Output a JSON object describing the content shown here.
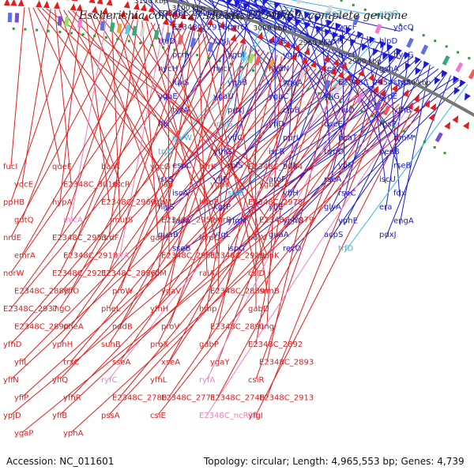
{
  "title": "Escherichia coli O127:H6 str. E2348/69, complete genome",
  "footer": {
    "accession": "Accession: NC_011601",
    "topology": "Topology: circular; Length: 4,965,553 bp; Genes: 4,739"
  },
  "colors": {
    "forward": "#1a1ad6",
    "reverse": "#e21d1d",
    "rna": "#38b6e0",
    "ncrna": "#f080c0",
    "axis": "#777777"
  },
  "kbp_ticks": [
    "3200 kbp",
    "3150 kbp",
    "3100 kbp",
    "3050 kbp",
    "3000 kbp",
    "2950 kbp",
    "2900 kbp",
    "2850 kbp"
  ],
  "forward_labels": [
    {
      "text": "E2348C_2894",
      "kind": "cds"
    },
    {
      "text": "E2348C_2884",
      "kind": "cds"
    },
    {
      "text": "rpoE",
      "kind": "cds"
    },
    {
      "text": "argZ",
      "kind": "rna"
    },
    {
      "text": "argQ",
      "kind": "rna"
    },
    {
      "text": "E2348C_2916",
      "kind": "cds"
    },
    {
      "text": "pvrG",
      "kind": "cds"
    },
    {
      "text": "eno",
      "kind": "cds"
    },
    {
      "text": "ygcF",
      "kind": "cds"
    },
    {
      "text": "ygcQ",
      "kind": "cds"
    },
    {
      "text": "truD",
      "kind": "cds"
    },
    {
      "text": "cysJ",
      "kind": "cds"
    },
    {
      "text": "surE",
      "kind": "cds"
    },
    {
      "text": "cysH",
      "kind": "cds"
    },
    {
      "text": "hlpD",
      "kind": "cds"
    },
    {
      "text": "pcm",
      "kind": "cds"
    },
    {
      "text": "ygbI",
      "kind": "cds"
    },
    {
      "text": "ygbA",
      "kind": "cds"
    },
    {
      "text": "hycF",
      "kind": "cds"
    },
    {
      "text": "hycG",
      "kind": "cds"
    },
    {
      "text": "hycH",
      "kind": "cds"
    },
    {
      "text": "hycI",
      "kind": "cds"
    },
    {
      "text": "hydN",
      "kind": "cds"
    },
    {
      "text": "recX",
      "kind": "cds"
    },
    {
      "text": "gshA",
      "kind": "cds"
    },
    {
      "text": "luxS",
      "kind": "cds"
    },
    {
      "text": "yqaB",
      "kind": "cds"
    },
    {
      "text": "yqaA",
      "kind": "cds"
    },
    {
      "text": "E2348C_2954",
      "kind": "cds"
    },
    {
      "text": "stpA",
      "kind": "cds"
    },
    {
      "text": "yqaE",
      "kind": "cds"
    },
    {
      "text": "ygaU",
      "kind": "cds"
    },
    {
      "text": "ygaC",
      "kind": "cds"
    },
    {
      "text": "yfjG",
      "kind": "cds"
    },
    {
      "text": "grpE",
      "kind": "cds"
    },
    {
      "text": "tyrA",
      "kind": "cds"
    },
    {
      "text": "pdxJ",
      "kind": "cds"
    },
    {
      "text": "clpB",
      "kind": "cds"
    },
    {
      "text": "rluD",
      "kind": "cds"
    },
    {
      "text": "yfhB",
      "kind": "cds"
    },
    {
      "text": "ffh",
      "kind": "cds"
    },
    {
      "text": "trrsG",
      "kind": "rna"
    },
    {
      "text": "yfiD",
      "kind": "cds"
    },
    {
      "text": "qseE",
      "kind": "cds"
    },
    {
      "text": "rpsP",
      "kind": "cds"
    },
    {
      "text": "glyW",
      "kind": "rna"
    },
    {
      "text": "yfiC",
      "kind": "cds"
    },
    {
      "text": "purL",
      "kind": "cds"
    },
    {
      "text": "hcaT",
      "kind": "cds"
    },
    {
      "text": "rimM",
      "kind": "cds"
    },
    {
      "text": "trrG",
      "kind": "rna"
    },
    {
      "text": "yfhG",
      "kind": "cds"
    },
    {
      "text": "iscR",
      "kind": "cds"
    },
    {
      "text": "trmD",
      "kind": "cds"
    },
    {
      "text": "pepB",
      "kind": "cds"
    },
    {
      "text": "espC",
      "kind": "cds"
    },
    {
      "text": "rplS",
      "kind": "cds"
    },
    {
      "text": "ndk",
      "kind": "cds"
    },
    {
      "text": "yfiF",
      "kind": "cds"
    },
    {
      "text": "rseB",
      "kind": "cds"
    },
    {
      "text": "iscS",
      "kind": "cds"
    },
    {
      "text": "yfjF",
      "kind": "cds"
    },
    {
      "text": "aroF",
      "kind": "cds"
    },
    {
      "text": "rseA",
      "kind": "cds"
    },
    {
      "text": "iscU",
      "kind": "cds"
    },
    {
      "text": "iscA",
      "kind": "cds"
    },
    {
      "text": "sroE",
      "kind": "rna"
    },
    {
      "text": "yfiH",
      "kind": "cds"
    },
    {
      "text": "rseC",
      "kind": "cds"
    },
    {
      "text": "fdx",
      "kind": "cds"
    },
    {
      "text": "hisS",
      "kind": "cds"
    },
    {
      "text": "kgtP",
      "kind": "cds"
    },
    {
      "text": "yfiE",
      "kind": "cds"
    },
    {
      "text": "glyA",
      "kind": "cds"
    },
    {
      "text": "era",
      "kind": "cds"
    },
    {
      "text": "tadA",
      "kind": "cds"
    },
    {
      "text": "yfgM",
      "kind": "cds"
    },
    {
      "text": "yphG",
      "kind": "cds"
    },
    {
      "text": "yphE",
      "kind": "cds"
    },
    {
      "text": "engA",
      "kind": "cds"
    },
    {
      "text": "guaB",
      "kind": "cds"
    },
    {
      "text": "yfgL",
      "kind": "cds"
    },
    {
      "text": "guaA",
      "kind": "cds"
    },
    {
      "text": "acpS",
      "kind": "cds"
    },
    {
      "text": "pdxJ",
      "kind": "cds"
    },
    {
      "text": "sseB",
      "kind": "cds"
    },
    {
      "text": "ispG",
      "kind": "cds"
    },
    {
      "text": "recO",
      "kind": "cds"
    },
    {
      "text": "trfD",
      "kind": "rna"
    }
  ],
  "reverse_labels": [
    {
      "text": "fucI",
      "kind": "cds"
    },
    {
      "text": "queF",
      "kind": "cds"
    },
    {
      "text": "barA",
      "kind": "cds"
    },
    {
      "text": "ygcG",
      "kind": "cds"
    },
    {
      "text": "scrK",
      "kind": "cds"
    },
    {
      "text": "E2348C_3024",
      "kind": "cds"
    },
    {
      "text": "yqcE",
      "kind": "cds"
    },
    {
      "text": "E2348C_3010",
      "kind": "cds"
    },
    {
      "text": "sscR",
      "kind": "cds"
    },
    {
      "text": "iap",
      "kind": "cds"
    },
    {
      "text": "ygbK",
      "kind": "cds"
    },
    {
      "text": "ygbN",
      "kind": "cds"
    },
    {
      "text": "ppHB",
      "kind": "cds"
    },
    {
      "text": "hypA",
      "kind": "cds"
    },
    {
      "text": "E2348C_2969",
      "kind": "cds"
    },
    {
      "text": "ygbM",
      "kind": "cds"
    },
    {
      "text": "hypB",
      "kind": "cds"
    },
    {
      "text": "E2348C_2978",
      "kind": "cds"
    },
    {
      "text": "gutQ",
      "kind": "cds"
    },
    {
      "text": "micA",
      "kind": "ncrna"
    },
    {
      "text": "mutS",
      "kind": "cds"
    },
    {
      "text": "E2348C_2952",
      "kind": "cds"
    },
    {
      "text": "emrB",
      "kind": "cds"
    },
    {
      "text": "E2348C_2979",
      "kind": "cds"
    },
    {
      "text": "nrdE",
      "kind": "cds"
    },
    {
      "text": "E2348C_2953",
      "kind": "cds"
    },
    {
      "text": "nrdF",
      "kind": "cds"
    },
    {
      "text": "gabT",
      "kind": "cds"
    },
    {
      "text": "hypC",
      "kind": "cds"
    },
    {
      "text": "norV",
      "kind": "cds"
    },
    {
      "text": "emrA",
      "kind": "cds"
    },
    {
      "text": "E2348C_2918",
      "kind": "cds"
    },
    {
      "text": "ssrA",
      "kind": "ncrna"
    },
    {
      "text": "E2348C_2951",
      "kind": "cds"
    },
    {
      "text": "E2348C_2919",
      "kind": "cds"
    },
    {
      "text": "ppnK",
      "kind": "cds"
    },
    {
      "text": "norW",
      "kind": "cds"
    },
    {
      "text": "E2348C_2921",
      "kind": "cds"
    },
    {
      "text": "E2348C_2886",
      "kind": "cds"
    },
    {
      "text": "yfiM",
      "kind": "cds"
    },
    {
      "text": "raiA",
      "kind": "cds"
    },
    {
      "text": "cslD",
      "kind": "cds"
    },
    {
      "text": "E2348C_2888",
      "kind": "cds"
    },
    {
      "text": "yfiO",
      "kind": "cds"
    },
    {
      "text": "proW",
      "kind": "cds"
    },
    {
      "text": "ygaV",
      "kind": "cds"
    },
    {
      "text": "E2348C_2889",
      "kind": "cds"
    },
    {
      "text": "srmB",
      "kind": "cds"
    },
    {
      "text": "E2348C_2937",
      "kind": "cds"
    },
    {
      "text": "ihgO",
      "kind": "cds"
    },
    {
      "text": "pheL",
      "kind": "cds"
    },
    {
      "text": "yfhH",
      "kind": "cds"
    },
    {
      "text": "hmp",
      "kind": "cds"
    },
    {
      "text": "gabD",
      "kind": "cds"
    },
    {
      "text": "E2348C_2890",
      "kind": "cds"
    },
    {
      "text": "pheA",
      "kind": "cds"
    },
    {
      "text": "nadB",
      "kind": "cds"
    },
    {
      "text": "proV",
      "kind": "cds"
    },
    {
      "text": "E2348C_2891",
      "kind": "cds"
    },
    {
      "text": "ung",
      "kind": "cds"
    },
    {
      "text": "yfhD",
      "kind": "cds"
    },
    {
      "text": "yphH",
      "kind": "cds"
    },
    {
      "text": "suhB",
      "kind": "cds"
    },
    {
      "text": "proX",
      "kind": "cds"
    },
    {
      "text": "gabP",
      "kind": "cds"
    },
    {
      "text": "E2348C_2892",
      "kind": "cds"
    },
    {
      "text": "yfiL",
      "kind": "cds"
    },
    {
      "text": "trxC",
      "kind": "cds"
    },
    {
      "text": "sseA",
      "kind": "cds"
    },
    {
      "text": "xseA",
      "kind": "cds"
    },
    {
      "text": "ygaY",
      "kind": "cds"
    },
    {
      "text": "E2348C_2893",
      "kind": "cds"
    },
    {
      "text": "yfiN",
      "kind": "cds"
    },
    {
      "text": "yfiQ",
      "kind": "cds"
    },
    {
      "text": "ryfC",
      "kind": "ncrna"
    },
    {
      "text": "yfhL",
      "kind": "cds"
    },
    {
      "text": "ryfA",
      "kind": "ncrna"
    },
    {
      "text": "csiR",
      "kind": "cds"
    },
    {
      "text": "yfiP",
      "kind": "cds"
    },
    {
      "text": "yfhR",
      "kind": "cds"
    },
    {
      "text": "E2348C_2780",
      "kind": "cds"
    },
    {
      "text": "E2348C_2771",
      "kind": "cds"
    },
    {
      "text": "E2348C_2740",
      "kind": "cds"
    },
    {
      "text": "E2348C_2913",
      "kind": "cds"
    },
    {
      "text": "ypjD",
      "kind": "cds"
    },
    {
      "text": "yfiB",
      "kind": "cds"
    },
    {
      "text": "pssA",
      "kind": "cds"
    },
    {
      "text": "csiE",
      "kind": "cds"
    },
    {
      "text": "E2348C_ncR36",
      "kind": "ncrna"
    },
    {
      "text": "yfgI",
      "kind": "cds"
    },
    {
      "text": "ygaP",
      "kind": "cds"
    },
    {
      "text": "yphA",
      "kind": "cds"
    }
  ]
}
